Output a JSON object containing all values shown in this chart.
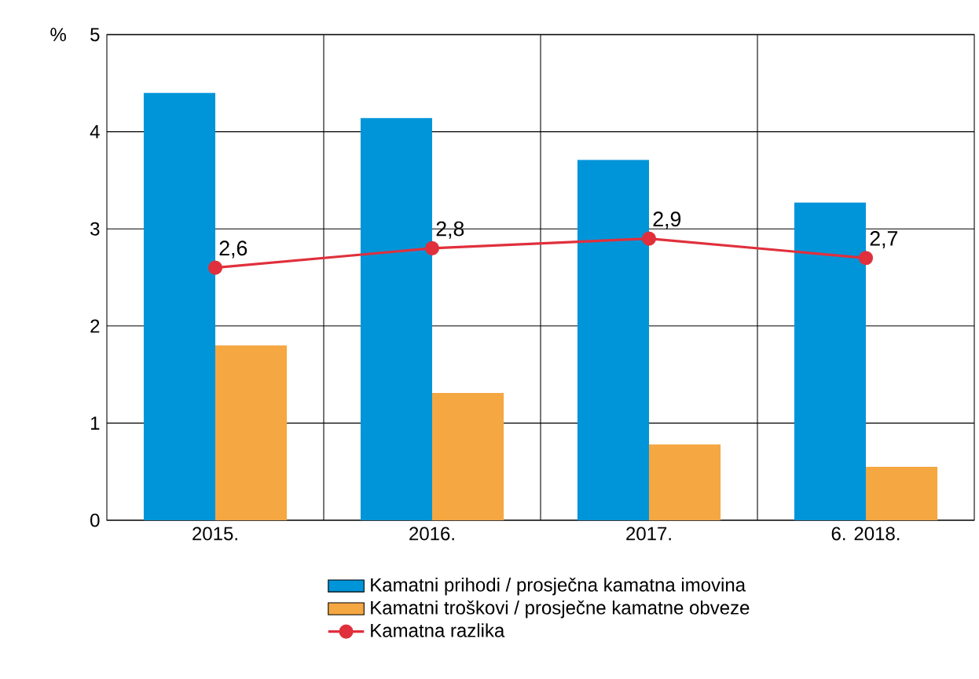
{
  "chart_data": {
    "type": "bar",
    "ylabel": "%",
    "categories": [
      "2015.",
      "2016.",
      "2017.",
      "6. 2018."
    ],
    "series": [
      {
        "name": "Kamatni prihodi / prosječna kamatna imovina",
        "color": "#0095d9",
        "values": [
          4.4,
          4.14,
          3.71,
          3.27
        ]
      },
      {
        "name": "Kamatni troškovi / prosječne kamatne obveze",
        "color": "#f5a742",
        "values": [
          1.8,
          1.31,
          0.78,
          0.55
        ]
      },
      {
        "name": "Kamatna razlika",
        "type": "line",
        "color": "#e0303c",
        "marker": "circle",
        "values": [
          2.6,
          2.8,
          2.9,
          2.7
        ],
        "value_labels": [
          "2,6",
          "2,8",
          "2,9",
          "2,7"
        ]
      }
    ],
    "ylim": [
      0,
      5
    ],
    "yticks": [
      0,
      1,
      2,
      3,
      4,
      5
    ],
    "grid": true,
    "legend": "bottom"
  }
}
